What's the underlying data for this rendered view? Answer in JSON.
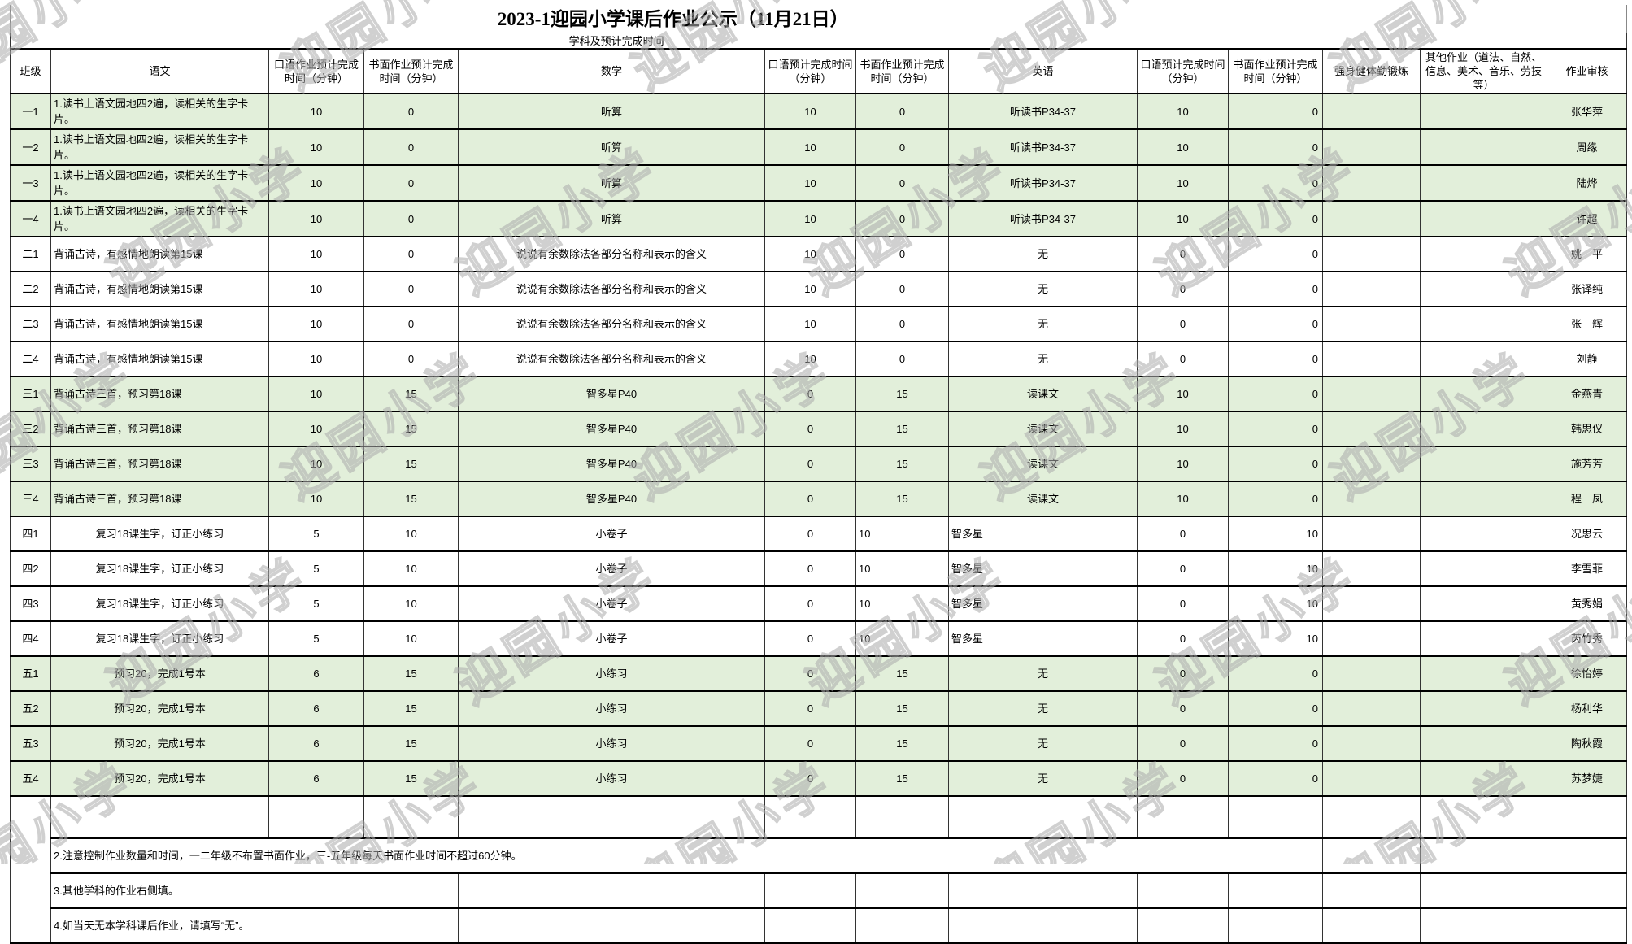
{
  "title": "2023-1迎园小学课后作业公示（11月21日）",
  "subheader": "学科及预计完成时间",
  "watermark": {
    "text": "迎园小学"
  },
  "colors": {
    "shaded_row": "#e2efda",
    "grid_line": "#000000"
  },
  "columns": [
    {
      "key": "class",
      "label": "班级"
    },
    {
      "key": "chinese",
      "label": "语文"
    },
    {
      "key": "cn-oral",
      "label": "口语作业预计完成时间（分钟）"
    },
    {
      "key": "cn-written",
      "label": "书面作业预计完成时间（分钟）"
    },
    {
      "key": "math",
      "label": "数学"
    },
    {
      "key": "math-oral",
      "label": "口语预计完成时间（分钟）"
    },
    {
      "key": "math-written",
      "label": "书面作业预计完成时间（分钟）"
    },
    {
      "key": "english",
      "label": "英语"
    },
    {
      "key": "en-oral",
      "label": "口语预计完成时间（分钟）"
    },
    {
      "key": "en-written",
      "label": "书面作业预计完成时间（分钟）"
    },
    {
      "key": "exercise",
      "label": "强身健体勤锻炼"
    },
    {
      "key": "other",
      "label": "其他作业（道法、自然、信息、美术、音乐、劳技等）"
    },
    {
      "key": "reviewer",
      "label": "作业审核"
    }
  ],
  "rows": [
    {
      "class_id": "一1",
      "chinese": "1.读书上语文园地四2遍，读相关的生字卡片。",
      "cn_oral": "10",
      "cn_written": "0",
      "math": "听算",
      "math_oral": "10",
      "math_written": "0",
      "english": "听读书P34-37",
      "en_oral": "10",
      "en_written": "0",
      "exercise": "",
      "other": "",
      "reviewer": "张华萍",
      "shaded": true,
      "tall": true
    },
    {
      "class_id": "一2",
      "chinese": "1.读书上语文园地四2遍，读相关的生字卡片。",
      "cn_oral": "10",
      "cn_written": "0",
      "math": "听算",
      "math_oral": "10",
      "math_written": "0",
      "english": "听读书P34-37",
      "en_oral": "10",
      "en_written": "0",
      "exercise": "",
      "other": "",
      "reviewer": "周缘",
      "shaded": true,
      "tall": true
    },
    {
      "class_id": "一3",
      "chinese": "1.读书上语文园地四2遍，读相关的生字卡片。",
      "cn_oral": "10",
      "cn_written": "0",
      "math": "听算",
      "math_oral": "10",
      "math_written": "0",
      "english": "听读书P34-37",
      "en_oral": "10",
      "en_written": "0",
      "exercise": "",
      "other": "",
      "reviewer": "陆烨",
      "shaded": true,
      "tall": true
    },
    {
      "class_id": "一4",
      "chinese": "1.读书上语文园地四2遍，读相关的生字卡片。",
      "cn_oral": "10",
      "cn_written": "0",
      "math": "听算",
      "math_oral": "10",
      "math_written": "0",
      "english": "听读书P34-37",
      "en_oral": "10",
      "en_written": "0",
      "exercise": "",
      "other": "",
      "reviewer": "许超",
      "shaded": true,
      "tall": true
    },
    {
      "class_id": "二1",
      "chinese": "背诵古诗，有感情地朗读第15课",
      "cn_oral": "10",
      "cn_written": "0",
      "math": "说说有余数除法各部分名称和表示的含义",
      "math_oral": "10",
      "math_written": "0",
      "english": "无",
      "en_oral": "0",
      "en_written": "0",
      "exercise": "",
      "other": "",
      "reviewer": "姚　平",
      "shaded": false
    },
    {
      "class_id": "二2",
      "chinese": "背诵古诗，有感情地朗读第15课",
      "cn_oral": "10",
      "cn_written": "0",
      "math": "说说有余数除法各部分名称和表示的含义",
      "math_oral": "10",
      "math_written": "0",
      "english": "无",
      "en_oral": "0",
      "en_written": "0",
      "exercise": "",
      "other": "",
      "reviewer": "张译纯",
      "shaded": false
    },
    {
      "class_id": "二3",
      "chinese": "背诵古诗，有感情地朗读第15课",
      "cn_oral": "10",
      "cn_written": "0",
      "math": "说说有余数除法各部分名称和表示的含义",
      "math_oral": "10",
      "math_written": "0",
      "english": "无",
      "en_oral": "0",
      "en_written": "0",
      "exercise": "",
      "other": "",
      "reviewer": "张　辉",
      "shaded": false
    },
    {
      "class_id": "二4",
      "chinese": "背诵古诗，有感情地朗读第15课",
      "cn_oral": "10",
      "cn_written": "0",
      "math": "说说有余数除法各部分名称和表示的含义",
      "math_oral": "10",
      "math_written": "0",
      "english": "无",
      "en_oral": "0",
      "en_written": "0",
      "exercise": "",
      "other": "",
      "reviewer": "刘静",
      "shaded": false
    },
    {
      "class_id": "三1",
      "chinese": "背诵古诗三首，预习第18课",
      "cn_oral": "10",
      "cn_written": "15",
      "math": "智多星P40",
      "math_oral": "0",
      "math_written": "15",
      "english": "读课文",
      "en_oral": "10",
      "en_written": "0",
      "exercise": "",
      "other": "",
      "reviewer": "金燕青",
      "shaded": true
    },
    {
      "class_id": "三2",
      "chinese": "背诵古诗三首，预习第18课",
      "cn_oral": "10",
      "cn_written": "15",
      "math": "智多星P40",
      "math_oral": "0",
      "math_written": "15",
      "english": "读课文",
      "en_oral": "10",
      "en_written": "0",
      "exercise": "",
      "other": "",
      "reviewer": "韩思仪",
      "shaded": true
    },
    {
      "class_id": "三3",
      "chinese": "背诵古诗三首，预习第18课",
      "cn_oral": "10",
      "cn_written": "15",
      "math": "智多星P40",
      "math_oral": "0",
      "math_written": "15",
      "english": "读课文",
      "en_oral": "10",
      "en_written": "0",
      "exercise": "",
      "other": "",
      "reviewer": "施芳芳",
      "shaded": true
    },
    {
      "class_id": "三4",
      "chinese": "背诵古诗三首，预习第18课",
      "cn_oral": "10",
      "cn_written": "15",
      "math": "智多星P40",
      "math_oral": "0",
      "math_written": "15",
      "english": "读课文",
      "en_oral": "10",
      "en_written": "0",
      "exercise": "",
      "other": "",
      "reviewer": "程　凤",
      "shaded": true
    },
    {
      "class_id": "四1",
      "chinese": "复习18课生字，订正小练习",
      "chinese_center": true,
      "cn_oral": "5",
      "cn_written": "10",
      "math": "小卷子",
      "math_oral": "0",
      "math_written": "10",
      "math_written_left": true,
      "english": "智多星",
      "english_left": true,
      "en_oral": "0",
      "en_written": "10",
      "exercise": "",
      "other": "",
      "reviewer": "况思云",
      "shaded": false
    },
    {
      "class_id": "四2",
      "chinese": "复习18课生字，订正小练习",
      "chinese_center": true,
      "cn_oral": "5",
      "cn_written": "10",
      "math": "小卷子",
      "math_oral": "0",
      "math_written": "10",
      "math_written_left": true,
      "english": "智多星",
      "english_left": true,
      "en_oral": "0",
      "en_written": "10",
      "exercise": "",
      "other": "",
      "reviewer": "李雪菲",
      "shaded": false
    },
    {
      "class_id": "四3",
      "chinese": "复习18课生字，订正小练习",
      "chinese_center": true,
      "cn_oral": "5",
      "cn_written": "10",
      "math": "小卷子",
      "math_oral": "0",
      "math_written": "10",
      "math_written_left": true,
      "english": "智多星",
      "english_left": true,
      "en_oral": "0",
      "en_written": "10",
      "exercise": "",
      "other": "",
      "reviewer": "黄秀娟",
      "shaded": false
    },
    {
      "class_id": "四4",
      "chinese": "复习18课生字，订正小练习",
      "chinese_center": true,
      "cn_oral": "5",
      "cn_written": "10",
      "math": "小卷子",
      "math_oral": "0",
      "math_written": "10",
      "math_written_left": true,
      "english": "智多星",
      "english_left": true,
      "en_oral": "0",
      "en_written": "10",
      "exercise": "",
      "other": "",
      "reviewer": "芮竹秀",
      "shaded": false
    },
    {
      "class_id": "五1",
      "chinese": "预习20，完成1号本",
      "chinese_center": true,
      "cn_oral": "6",
      "cn_written": "15",
      "math": "小练习",
      "math_oral": "0",
      "math_written": "15",
      "english": "无",
      "en_oral": "0",
      "en_written": "0",
      "exercise": "",
      "other": "",
      "reviewer": "徐怡婷",
      "shaded": true
    },
    {
      "class_id": "五2",
      "chinese": "预习20，完成1号本",
      "chinese_center": true,
      "cn_oral": "6",
      "cn_written": "15",
      "math": "小练习",
      "math_oral": "0",
      "math_written": "15",
      "english": "无",
      "en_oral": "0",
      "en_written": "0",
      "exercise": "",
      "other": "",
      "reviewer": "杨利华",
      "shaded": true
    },
    {
      "class_id": "五3",
      "chinese": "预习20，完成1号本",
      "chinese_center": true,
      "cn_oral": "6",
      "cn_written": "15",
      "math": "小练习",
      "math_oral": "0",
      "math_written": "15",
      "english": "无",
      "en_oral": "0",
      "en_written": "0",
      "exercise": "",
      "other": "",
      "reviewer": "陶秋霞",
      "shaded": true
    },
    {
      "class_id": "五4",
      "chinese": "预习20，完成1号本",
      "chinese_center": true,
      "cn_oral": "6",
      "cn_written": "15",
      "math": "小练习",
      "math_oral": "0",
      "math_written": "15",
      "english": "无",
      "en_oral": "0",
      "en_written": "0",
      "exercise": "",
      "other": "",
      "reviewer": "苏梦婕",
      "shaded": true
    }
  ],
  "notes": [
    "2.注意控制作业数量和时间，一二年级不布置书面作业，三-五年级每天书面作业时间不超过60分钟。",
    "3.其他学科的作业右侧填。",
    "4.如当天无本学科课后作业，请填写“无”。"
  ]
}
